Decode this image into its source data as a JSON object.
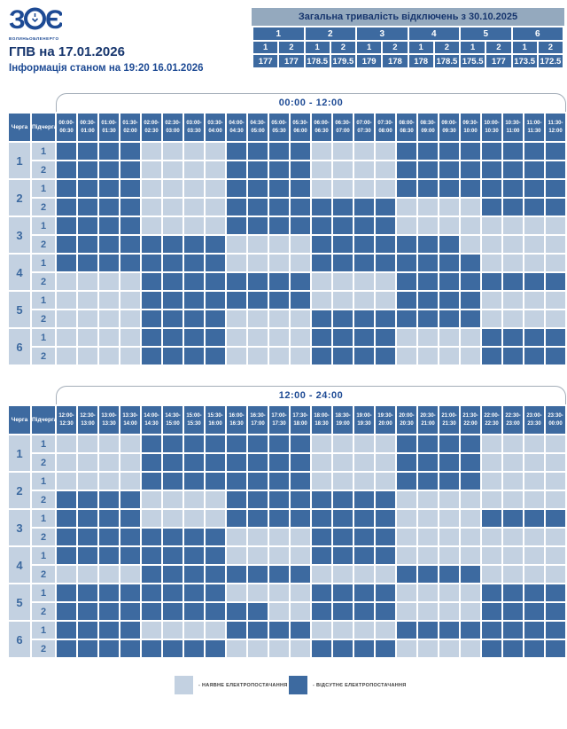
{
  "logo": {
    "mark_left": "З",
    "mark_right": "Є",
    "company": "ВОЛИНЬОБЛЕНЕРГО"
  },
  "header": {
    "title": "ГПВ на 17.01.2026",
    "subtitle": "Інформація станом на 19:20 16.01.2026"
  },
  "summary": {
    "title": "Загальна тривалість відключень з 30.10.2025",
    "queues": [
      "1",
      "2",
      "3",
      "4",
      "5",
      "6"
    ],
    "subqueues": [
      "1",
      "2",
      "1",
      "2",
      "1",
      "2",
      "1",
      "2",
      "1",
      "2",
      "1",
      "2"
    ],
    "values": [
      "177",
      "177",
      "178.5",
      "179.5",
      "179",
      "178",
      "178",
      "178.5",
      "175.5",
      "177",
      "173.5",
      "172.5"
    ]
  },
  "grid_labels": {
    "queue": "Черга",
    "subqueue": "Підчерга"
  },
  "colors": {
    "outage": "#3d6aa0",
    "available": "#c3d1e1",
    "summary_title_bg": "#94a9be",
    "title_text": "#16356d"
  },
  "legend": [
    {
      "key": "available",
      "label": "- НАЯВНЕ ЕЛЕКТРОПОСТАЧАННЯ",
      "color": "#c3d1e1"
    },
    {
      "key": "outage",
      "label": "- ВІДСУТНЄ ЕЛЕКТРОПОСТАЧАННЯ",
      "color": "#3d6aa0"
    }
  ],
  "chart_data": [
    {
      "type": "heatmap",
      "title": "00:00 - 12:00",
      "value_meaning": {
        "1": "outage (no electricity)",
        "0": "electricity available"
      },
      "columns": [
        "00:00-00:30",
        "00:30-01:00",
        "01:00-01:30",
        "01:30-02:00",
        "02:00-02:30",
        "02:30-03:00",
        "03:00-03:30",
        "03:30-04:00",
        "04:00-04:30",
        "04:30-05:00",
        "05:00-05:30",
        "05:30-06:00",
        "06:00-06:30",
        "06:30-07:00",
        "07:00-07:30",
        "07:30-08:00",
        "08:00-08:30",
        "08:30-09:00",
        "09:00-09:30",
        "09:30-10:00",
        "10:00-10:30",
        "10:30-11:00",
        "11:00-11:30",
        "11:30-12:00"
      ],
      "rows": [
        {
          "queue": "1",
          "subqueue": "1",
          "outage": [
            1,
            1,
            1,
            1,
            0,
            0,
            0,
            0,
            1,
            1,
            1,
            1,
            0,
            0,
            0,
            0,
            1,
            1,
            1,
            1,
            1,
            1,
            1,
            1
          ]
        },
        {
          "queue": "1",
          "subqueue": "2",
          "outage": [
            1,
            1,
            1,
            1,
            0,
            0,
            0,
            0,
            1,
            1,
            1,
            1,
            0,
            0,
            0,
            0,
            1,
            1,
            1,
            1,
            1,
            1,
            1,
            1
          ]
        },
        {
          "queue": "2",
          "subqueue": "1",
          "outage": [
            1,
            1,
            1,
            1,
            0,
            0,
            0,
            0,
            1,
            1,
            1,
            1,
            0,
            0,
            0,
            0,
            1,
            1,
            1,
            1,
            1,
            1,
            1,
            1
          ]
        },
        {
          "queue": "2",
          "subqueue": "2",
          "outage": [
            1,
            1,
            1,
            1,
            0,
            0,
            0,
            0,
            1,
            1,
            1,
            1,
            1,
            1,
            1,
            1,
            0,
            0,
            0,
            0,
            1,
            1,
            1,
            1
          ]
        },
        {
          "queue": "3",
          "subqueue": "1",
          "outage": [
            1,
            1,
            1,
            1,
            0,
            0,
            0,
            0,
            1,
            1,
            1,
            1,
            1,
            1,
            1,
            1,
            0,
            0,
            0,
            0,
            0,
            0,
            0,
            0
          ]
        },
        {
          "queue": "3",
          "subqueue": "2",
          "outage": [
            1,
            1,
            1,
            1,
            1,
            1,
            1,
            1,
            0,
            0,
            0,
            0,
            1,
            1,
            1,
            1,
            1,
            1,
            1,
            0,
            0,
            0,
            0,
            0
          ]
        },
        {
          "queue": "4",
          "subqueue": "1",
          "outage": [
            1,
            1,
            1,
            1,
            1,
            1,
            1,
            1,
            0,
            0,
            0,
            0,
            1,
            1,
            1,
            1,
            1,
            1,
            1,
            1,
            0,
            0,
            0,
            0
          ]
        },
        {
          "queue": "4",
          "subqueue": "2",
          "outage": [
            0,
            0,
            0,
            0,
            1,
            1,
            1,
            1,
            1,
            1,
            1,
            1,
            0,
            0,
            0,
            0,
            1,
            1,
            1,
            1,
            1,
            1,
            1,
            1
          ]
        },
        {
          "queue": "5",
          "subqueue": "1",
          "outage": [
            0,
            0,
            0,
            0,
            1,
            1,
            1,
            1,
            1,
            1,
            1,
            1,
            0,
            0,
            0,
            0,
            1,
            1,
            1,
            1,
            0,
            0,
            0,
            0
          ]
        },
        {
          "queue": "5",
          "subqueue": "2",
          "outage": [
            0,
            0,
            0,
            0,
            1,
            1,
            1,
            1,
            0,
            0,
            0,
            0,
            1,
            1,
            1,
            1,
            1,
            1,
            1,
            1,
            0,
            0,
            0,
            0
          ]
        },
        {
          "queue": "6",
          "subqueue": "1",
          "outage": [
            0,
            0,
            0,
            0,
            1,
            1,
            1,
            1,
            0,
            0,
            0,
            0,
            1,
            1,
            1,
            1,
            0,
            0,
            0,
            0,
            1,
            1,
            1,
            1
          ]
        },
        {
          "queue": "6",
          "subqueue": "2",
          "outage": [
            0,
            0,
            0,
            0,
            1,
            1,
            1,
            1,
            0,
            0,
            0,
            0,
            1,
            1,
            1,
            1,
            0,
            0,
            0,
            0,
            1,
            1,
            1,
            1
          ]
        }
      ]
    },
    {
      "type": "heatmap",
      "title": "12:00 - 24:00",
      "value_meaning": {
        "1": "outage (no electricity)",
        "0": "electricity available"
      },
      "columns": [
        "12:00-12:30",
        "12:30-13:00",
        "13:00-13:30",
        "13:30-14:00",
        "14:00-14:30",
        "14:30-15:00",
        "15:00-15:30",
        "15:30-16:00",
        "16:00-16:30",
        "16:30-17:00",
        "17:00-17:30",
        "17:30-18:00",
        "18:00-18:30",
        "18:30-19:00",
        "19:00-19:30",
        "19:30-20:00",
        "20:00-20:30",
        "20:30-21:00",
        "21:00-21:30",
        "21:30-22:00",
        "22:00-22:30",
        "22:30-23:00",
        "23:00-23:30",
        "23:30-00:00"
      ],
      "rows": [
        {
          "queue": "1",
          "subqueue": "1",
          "outage": [
            0,
            0,
            0,
            0,
            1,
            1,
            1,
            1,
            1,
            1,
            1,
            1,
            0,
            0,
            0,
            0,
            1,
            1,
            1,
            1,
            0,
            0,
            0,
            0
          ]
        },
        {
          "queue": "1",
          "subqueue": "2",
          "outage": [
            0,
            0,
            0,
            0,
            1,
            1,
            1,
            1,
            1,
            1,
            1,
            1,
            0,
            0,
            0,
            0,
            1,
            1,
            1,
            1,
            0,
            0,
            0,
            0
          ]
        },
        {
          "queue": "2",
          "subqueue": "1",
          "outage": [
            0,
            0,
            0,
            0,
            1,
            1,
            1,
            1,
            1,
            1,
            1,
            1,
            0,
            0,
            0,
            0,
            1,
            1,
            1,
            1,
            0,
            0,
            0,
            0
          ]
        },
        {
          "queue": "2",
          "subqueue": "2",
          "outage": [
            1,
            1,
            1,
            1,
            0,
            0,
            0,
            0,
            1,
            1,
            1,
            1,
            1,
            1,
            1,
            1,
            0,
            0,
            0,
            0,
            0,
            0,
            0,
            0
          ]
        },
        {
          "queue": "3",
          "subqueue": "1",
          "outage": [
            1,
            1,
            1,
            1,
            0,
            0,
            0,
            0,
            1,
            1,
            1,
            1,
            1,
            1,
            1,
            1,
            0,
            0,
            0,
            0,
            1,
            1,
            1,
            1
          ]
        },
        {
          "queue": "3",
          "subqueue": "2",
          "outage": [
            1,
            1,
            1,
            1,
            1,
            1,
            1,
            1,
            0,
            0,
            0,
            0,
            1,
            1,
            1,
            1,
            0,
            0,
            0,
            0,
            0,
            0,
            0,
            0
          ]
        },
        {
          "queue": "4",
          "subqueue": "1",
          "outage": [
            1,
            1,
            1,
            1,
            1,
            1,
            1,
            1,
            0,
            0,
            0,
            0,
            1,
            1,
            1,
            1,
            0,
            0,
            0,
            0,
            0,
            0,
            0,
            0
          ]
        },
        {
          "queue": "4",
          "subqueue": "2",
          "outage": [
            0,
            0,
            0,
            0,
            1,
            1,
            1,
            1,
            1,
            1,
            1,
            1,
            0,
            0,
            0,
            0,
            1,
            1,
            1,
            1,
            0,
            0,
            0,
            0
          ]
        },
        {
          "queue": "5",
          "subqueue": "1",
          "outage": [
            1,
            1,
            1,
            1,
            1,
            1,
            1,
            1,
            0,
            0,
            0,
            0,
            1,
            1,
            1,
            1,
            0,
            0,
            0,
            0,
            1,
            1,
            1,
            1
          ]
        },
        {
          "queue": "5",
          "subqueue": "2",
          "outage": [
            1,
            1,
            1,
            1,
            1,
            1,
            1,
            1,
            1,
            1,
            0,
            0,
            1,
            1,
            1,
            1,
            0,
            0,
            0,
            0,
            1,
            1,
            1,
            1
          ]
        },
        {
          "queue": "6",
          "subqueue": "1",
          "outage": [
            1,
            1,
            1,
            1,
            0,
            0,
            0,
            0,
            1,
            1,
            1,
            1,
            0,
            0,
            0,
            0,
            1,
            1,
            1,
            1,
            1,
            1,
            1,
            1
          ]
        },
        {
          "queue": "6",
          "subqueue": "2",
          "outage": [
            1,
            1,
            1,
            1,
            1,
            1,
            1,
            1,
            0,
            0,
            0,
            0,
            1,
            1,
            1,
            1,
            0,
            0,
            0,
            0,
            1,
            1,
            1,
            1
          ]
        }
      ]
    }
  ]
}
